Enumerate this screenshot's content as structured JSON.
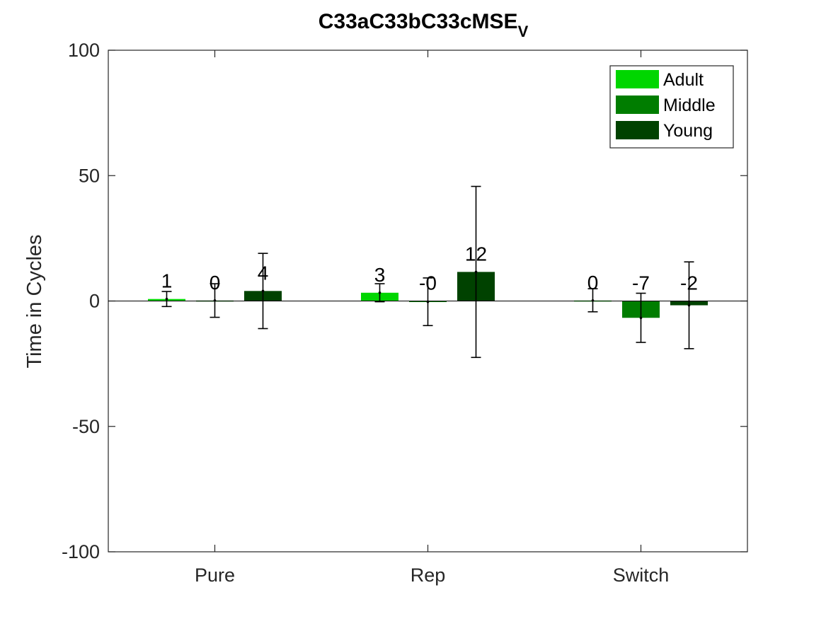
{
  "chart_data": {
    "type": "bar",
    "title": "C33aC33bC33cMSE",
    "title_subscript": "V",
    "xlabel": "",
    "ylabel": "Time in Cycles",
    "ylim": [
      -100,
      100
    ],
    "yticks": [
      "-100",
      "-50",
      "0",
      "50",
      "100"
    ],
    "categories": [
      "Pure",
      "Rep",
      "Switch"
    ],
    "legend_position": "top-right",
    "series": [
      {
        "name": "Adult",
        "color": "#00d600",
        "values": [
          0.8,
          3.3,
          0.2
        ],
        "err_low": [
          -2.2,
          -0.3,
          -4.3
        ],
        "err_high": [
          3.8,
          6.9,
          4.9
        ],
        "labels": [
          "1",
          "3",
          "0"
        ]
      },
      {
        "name": "Middle",
        "color": "#007d00",
        "values": [
          0.2,
          -0.3,
          -6.7
        ],
        "err_low": [
          -6.5,
          -9.8,
          -16.5
        ],
        "err_high": [
          6.9,
          9.2,
          3.1
        ],
        "labels": [
          "0",
          "-0",
          "-7"
        ]
      },
      {
        "name": "Young",
        "color": "#004200",
        "values": [
          4.0,
          11.6,
          -1.7
        ],
        "err_low": [
          -11.0,
          -22.5,
          -19.0
        ],
        "err_high": [
          19.0,
          45.7,
          15.6
        ],
        "labels": [
          "4",
          "12",
          "-2"
        ]
      }
    ]
  }
}
